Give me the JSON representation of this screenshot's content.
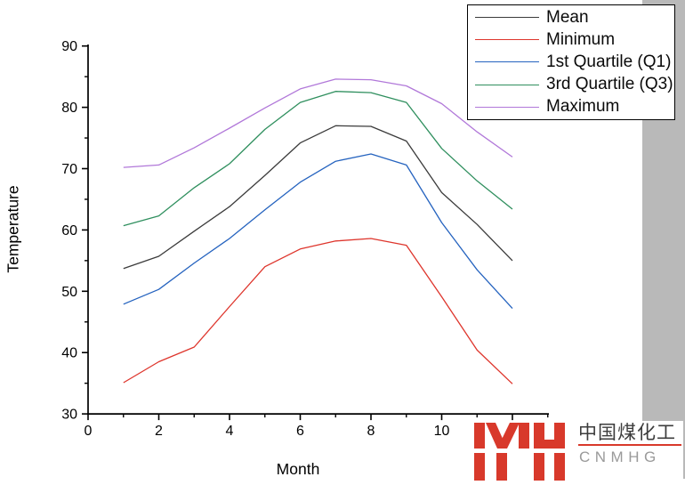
{
  "figure": {
    "background_color": "#ffffff",
    "y_axis_title": "Temperature",
    "x_axis_title": "Month"
  },
  "chart_data": {
    "type": "line",
    "title": "",
    "xlabel": "Month",
    "ylabel": "Temperature",
    "xlim": [
      0,
      13
    ],
    "ylim": [
      30,
      90
    ],
    "x_major_ticks": [
      0,
      2,
      4,
      6,
      8,
      10,
      12
    ],
    "x_minor_ticks": [
      1,
      3,
      5,
      7,
      9,
      11,
      13
    ],
    "x_tick_labels_shown": [
      "0",
      "2",
      "4",
      "6",
      "8",
      "10"
    ],
    "y_major_ticks": [
      30,
      40,
      50,
      60,
      70,
      80,
      90
    ],
    "y_minor_ticks": [
      35,
      45,
      55,
      65,
      75,
      85
    ],
    "grid": false,
    "legend_position": "top-right",
    "x": [
      1,
      2,
      3,
      4,
      5,
      6,
      7,
      8,
      9,
      10,
      11,
      12
    ],
    "series": [
      {
        "name": "Mean",
        "color": "#3b3b3b",
        "values": [
          53.7,
          55.7,
          59.8,
          63.8,
          68.9,
          74.2,
          77.0,
          76.9,
          74.5,
          66.1,
          60.9,
          55.0
        ]
      },
      {
        "name": "Minimum",
        "color": "#de352c",
        "values": [
          35.1,
          38.5,
          40.9,
          47.5,
          54.0,
          56.9,
          58.2,
          58.6,
          57.5,
          49.1,
          40.4,
          34.9
        ]
      },
      {
        "name": "1st Quartile (Q1)",
        "color": "#2563bf",
        "values": [
          47.9,
          50.3,
          54.6,
          58.6,
          63.3,
          67.8,
          71.2,
          72.4,
          70.6,
          61.2,
          53.5,
          47.2
        ]
      },
      {
        "name": "3rd Quartile (Q3)",
        "color": "#2f8f5e",
        "values": [
          60.7,
          62.3,
          66.9,
          70.8,
          76.4,
          80.8,
          82.6,
          82.4,
          80.8,
          73.3,
          68.0,
          63.4
        ]
      },
      {
        "name": "Maximum",
        "color": "#b178d9",
        "values": [
          70.2,
          70.6,
          73.4,
          76.6,
          79.9,
          83.0,
          84.6,
          84.5,
          83.5,
          80.6,
          76.0,
          71.9
        ]
      }
    ]
  },
  "watermark": {
    "company_cn": "中国煤化工",
    "company_en": "CNMHG",
    "accent_color": "#d8392b"
  },
  "right_strip_color": "#b9b9b9"
}
